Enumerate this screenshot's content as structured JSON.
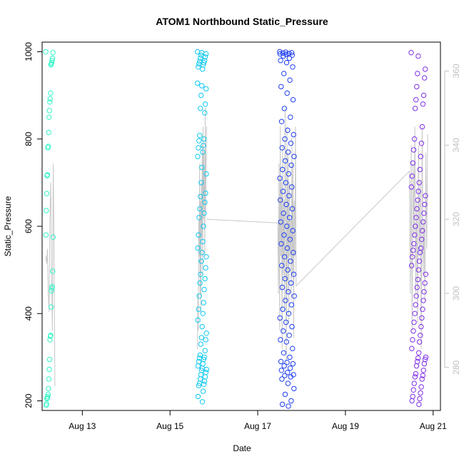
{
  "chart_data": {
    "type": "scatter",
    "title": "ATOM1 Northbound Static_Pressure",
    "xlabel": "Date",
    "ylabel": "Static_Pressure",
    "x_ticks": [
      "Aug 13",
      "Aug 15",
      "Aug 17",
      "Aug 19",
      "Aug 21"
    ],
    "y_ticks": [
      200,
      400,
      600,
      800,
      1000
    ],
    "y2_ticks": [
      280,
      300,
      320,
      340,
      360
    ],
    "xlim": [
      "Aug 12 02:00",
      "Aug 21 04:00"
    ],
    "ylim": [
      178,
      1022
    ],
    "y2lim": [
      268.4,
      367.8
    ],
    "grid": false,
    "clusters": [
      {
        "name": "",
        "x_range": [
          "Aug 12 04:00",
          "Aug 12 08:00"
        ],
        "color": "#33f5c8",
        "values": [
          1000,
          998,
          985,
          980,
          975,
          972,
          970,
          905,
          892,
          885,
          865,
          850,
          815,
          783,
          780,
          718,
          716,
          675,
          636,
          580,
          575,
          497,
          462,
          458,
          452,
          415,
          350,
          348,
          340,
          295,
          272,
          250,
          228,
          215,
          210,
          207,
          205,
          193,
          190
        ]
      },
      {
        "name": "",
        "x_range": [
          "Aug 15 15:00",
          "Aug 15 20:00"
        ],
        "color": "#10c8f0",
        "values": [
          1000,
          998,
          995,
          992,
          988,
          985,
          980,
          978,
          975,
          972,
          970,
          965,
          960,
          928,
          922,
          915,
          900,
          880,
          870,
          860,
          808,
          800,
          796,
          785,
          780,
          770,
          760,
          735,
          720,
          700,
          676,
          668,
          655,
          640,
          630,
          620,
          600,
          580,
          565,
          550,
          540,
          530,
          520,
          505,
          490,
          480,
          470,
          455,
          440,
          425,
          410,
          400,
          385,
          370,
          355,
          345,
          340,
          330,
          315,
          305,
          300,
          298,
          295,
          290,
          285,
          280,
          275,
          272,
          270,
          265,
          260,
          255,
          250,
          245,
          240,
          238,
          235,
          222,
          210,
          198
        ]
      },
      {
        "name": "",
        "x_range": [
          "Aug 17 12:00",
          "Aug 17 20:00"
        ],
        "color": "#2040f0",
        "values": [
          1000,
          999,
          998,
          997,
          996,
          995,
          994,
          992,
          990,
          985,
          980,
          975,
          965,
          950,
          935,
          920,
          905,
          890,
          870,
          850,
          840,
          820,
          810,
          800,
          790,
          780,
          770,
          760,
          750,
          740,
          730,
          720,
          710,
          700,
          690,
          680,
          670,
          660,
          650,
          640,
          630,
          620,
          610,
          600,
          590,
          580,
          570,
          560,
          550,
          540,
          530,
          520,
          510,
          500,
          490,
          480,
          470,
          460,
          450,
          440,
          430,
          420,
          410,
          400,
          390,
          380,
          370,
          360,
          350,
          340,
          335,
          320,
          310,
          300,
          290,
          288,
          285,
          280,
          275,
          270,
          265,
          260,
          258,
          255,
          250,
          240,
          228,
          215,
          200,
          192,
          188
        ]
      },
      {
        "name": "",
        "x_range": [
          "Aug 20 12:00",
          "Aug 20 20:00"
        ],
        "color": "#8030e8",
        "values": [
          998,
          990,
          960,
          950,
          940,
          920,
          900,
          890,
          880,
          870,
          828,
          800,
          790,
          775,
          760,
          745,
          730,
          715,
          700,
          690,
          680,
          670,
          660,
          650,
          640,
          630,
          620,
          610,
          600,
          590,
          580,
          570,
          560,
          550,
          545,
          540,
          530,
          520,
          510,
          500,
          490,
          478,
          470,
          460,
          450,
          440,
          430,
          420,
          410,
          400,
          390,
          380,
          370,
          360,
          350,
          340,
          335,
          320,
          310,
          300,
          298,
          295,
          290,
          285,
          280,
          270,
          262,
          258,
          255,
          250,
          240,
          232,
          225,
          218,
          210,
          205,
          200,
          192
        ]
      }
    ],
    "secondary_line": {
      "name": "",
      "axis": "right",
      "color": "#c8c8c8",
      "segments": [
        {
          "x_range": [
            "Aug 12 04:00",
            "Aug 12 09:00"
          ],
          "values": [
            310,
            308,
            312,
            300,
            295,
            320,
            330,
            305,
            290,
            335,
            310,
            275
          ]
        },
        {
          "x_range": [
            "Aug 15 15:00",
            "Aug 15 20:00"
          ],
          "values": [
            285,
            300,
            290,
            320,
            310,
            335,
            300,
            325,
            295,
            330,
            315,
            340,
            305,
            345,
            320,
            338,
            330,
            310,
            350,
            322,
            338,
            345
          ]
        },
        {
          "x_range": [
            "Aug 15 20:00",
            "Aug 17 11:00"
          ],
          "values": [
            320,
            319
          ]
        },
        {
          "x_range": [
            "Aug 17 11:00",
            "Aug 17 21:00"
          ],
          "values": [
            319,
            300,
            335,
            290,
            345,
            310,
            330,
            285,
            340,
            305,
            325,
            295,
            350,
            315,
            280,
            345,
            300,
            338,
            292,
            330,
            310,
            320,
            298,
            342,
            305,
            335,
            288,
            325,
            310,
            345,
            302
          ]
        },
        {
          "x_range": [
            "Aug 17 21:00",
            "Aug 20 11:00"
          ],
          "values": [
            302,
            333
          ]
        },
        {
          "x_range": [
            "Aug 20 11:00",
            "Aug 20 21:00"
          ],
          "values": [
            333,
            300,
            340,
            290,
            335,
            315,
            345,
            300,
            325,
            292,
            340,
            310,
            330,
            285,
            345,
            305,
            320,
            298,
            338,
            312,
            343
          ]
        }
      ]
    }
  }
}
